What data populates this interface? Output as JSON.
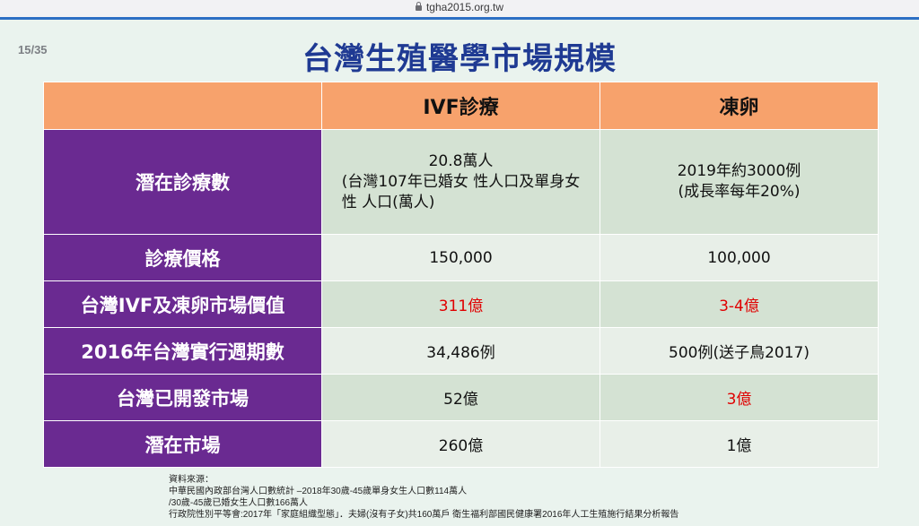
{
  "browser": {
    "url": "tgha2015.org.tw",
    "lock_icon": "lock-icon"
  },
  "slide": {
    "page_number": "15/35",
    "title": "台灣生殖醫學市場規模",
    "columns": [
      "IVF診療",
      "凍卵"
    ],
    "rows": [
      {
        "label": "潛在診療數",
        "ivf": [
          "20.8萬人",
          "(台灣107年已婚女 性人口及單身女",
          "性 人口(萬人)"
        ],
        "egg": [
          "2019年約3000例",
          "(成長率每年20%)"
        ]
      },
      {
        "label": "診療價格",
        "ivf": "150,000",
        "egg": "100,000"
      },
      {
        "label": "台灣IVF及凍卵市場價值",
        "ivf": "311億",
        "egg": "3-4億"
      },
      {
        "label": "2016年台灣實行週期數",
        "ivf": "34,486例",
        "egg": "500例(送子鳥2017)"
      },
      {
        "label": "台灣已開發市場",
        "ivf": "52億",
        "egg": "3億"
      },
      {
        "label": "潛在市場",
        "ivf": "260億",
        "egg": "1億"
      }
    ],
    "sources": [
      "資料來源：",
      "中華民國內政部台灣人口數統計 –2018年30歲-45歲單身女生人口數114萬人",
      "/30歲-45歲已婚女生人口數166萬人",
      "行政院性別平等會:2017年「家庭組織型態」．夫婦(沒有子女)共160萬戶 衛生福利部國民健康署2016年人工生殖施行結果分析報告"
    ],
    "colors": {
      "header": "#f7a26c",
      "row_label": "#6a2a91",
      "highlight": "#e00000",
      "title": "#1f3a93"
    }
  }
}
